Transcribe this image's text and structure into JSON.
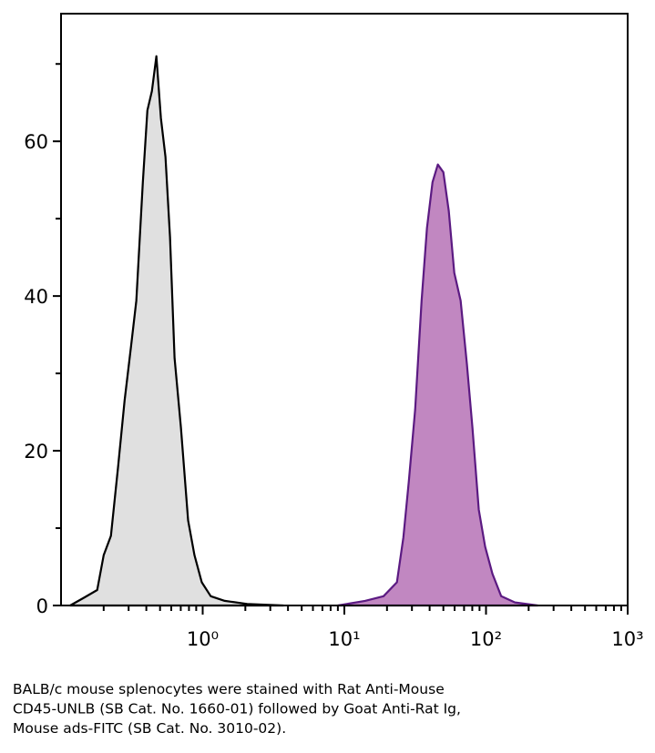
{
  "chart_data": {
    "type": "area",
    "xscale": "log",
    "xlim": [
      0.1,
      1000
    ],
    "ylim": [
      0,
      76.5
    ],
    "xticks": [
      {
        "value": 1,
        "label": "10⁰"
      },
      {
        "value": 10,
        "label": "10¹"
      },
      {
        "value": 100,
        "label": "10²"
      },
      {
        "value": 1000,
        "label": "10³"
      }
    ],
    "xminorticks": [
      0.2,
      0.3,
      0.4,
      0.5,
      0.6,
      0.7,
      0.8,
      0.9,
      2,
      3,
      4,
      5,
      6,
      7,
      8,
      9,
      20,
      30,
      40,
      50,
      60,
      70,
      80,
      90,
      200,
      300,
      400,
      500,
      600,
      700,
      800,
      900
    ],
    "yticks": [
      0,
      20,
      40,
      60
    ],
    "yminorticks": [
      10,
      30,
      50,
      70
    ],
    "series": [
      {
        "color": "#e0e0e0",
        "line_color": "#000000",
        "x": [
          0.116,
          0.145,
          0.18,
          0.2,
          0.225,
          0.253,
          0.281,
          0.312,
          0.34,
          0.378,
          0.407,
          0.438,
          0.471,
          0.507,
          0.546,
          0.588,
          0.633,
          0.702,
          0.789,
          0.875,
          0.985,
          1.14,
          1.43,
          2.06,
          3.72
        ],
        "values": [
          0,
          1,
          2,
          6.5,
          9,
          18,
          26.5,
          33.5,
          39.4,
          54.7,
          64,
          66.5,
          71,
          63,
          58,
          47.6,
          32,
          23,
          11,
          6.5,
          3,
          1.2,
          0.6,
          0.2,
          0
        ]
      },
      {
        "color": "#c187c1",
        "line_color": "#5b1a82",
        "x": [
          9.0,
          14.0,
          18.9,
          23.5,
          26.1,
          28.5,
          31.6,
          35.1,
          38.3,
          41.9,
          45.7,
          50,
          54.6,
          59.7,
          66.2,
          73.3,
          80.2,
          88.9,
          98.6,
          111,
          128,
          160,
          232
        ],
        "values": [
          0,
          0.6,
          1.2,
          3,
          8.8,
          16,
          25.3,
          39.4,
          48.8,
          54.7,
          57,
          56,
          51,
          43,
          39.4,
          31.2,
          23,
          12.4,
          7.6,
          4.1,
          1.2,
          0.4,
          0
        ]
      }
    ],
    "caption": [
      "BALB/c mouse splenocytes were stained with Rat Anti-Mouse",
      "CD45-UNLB (SB Cat. No. 1660-01) followed by Goat Anti-Rat Ig,",
      "Mouse ads-FITC (SB Cat. No. 3010-02)."
    ]
  }
}
